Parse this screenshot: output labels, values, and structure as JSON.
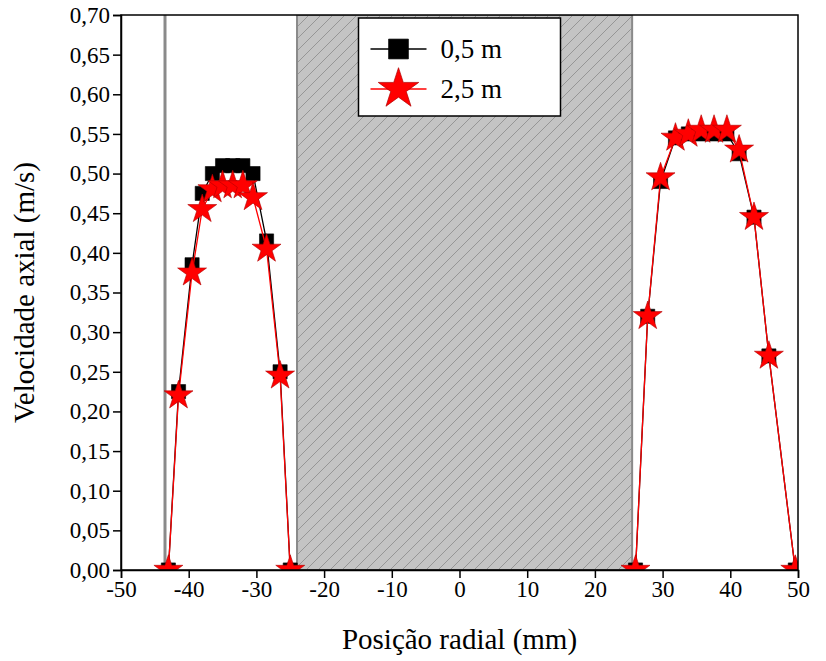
{
  "chart_data": {
    "type": "line",
    "x_label": "Posição radial (mm)",
    "y_label": "Velocidade axial (m/s)",
    "x": [
      -43,
      -41.5,
      -39.5,
      -38,
      -36.5,
      -35,
      -33.5,
      -32,
      -30.5,
      -28.5,
      -26.5,
      -25,
      0,
      26,
      27.8,
      29.7,
      31.9,
      33.8,
      35.7,
      37.6,
      39.5,
      41.3,
      43.5,
      45.7,
      49.6
    ],
    "series": [
      {
        "name": "0,5 m",
        "color": "#000000",
        "marker": "square",
        "line_style": "solid",
        "values": [
          0,
          0.225,
          0.385,
          0.475,
          0.5,
          0.51,
          0.51,
          0.51,
          0.5,
          0.415,
          0.25,
          0,
          null,
          0,
          0.32,
          0.49,
          0.545,
          0.55,
          0.55,
          0.55,
          0.55,
          0.525,
          0.445,
          0.27,
          0
        ]
      },
      {
        "name": "2,5 m",
        "color": "#ff0000",
        "marker": "star",
        "line_style": "solid",
        "values": [
          0,
          0.22,
          0.375,
          0.455,
          0.48,
          0.485,
          0.485,
          0.485,
          0.47,
          0.405,
          0.245,
          0,
          null,
          0,
          0.32,
          0.495,
          0.545,
          0.55,
          0.555,
          0.555,
          0.555,
          0.53,
          0.445,
          0.27,
          0
        ]
      }
    ],
    "regions": [
      [
        -24,
        25.5
      ]
    ],
    "vlines": [
      -43.5
    ],
    "xlim": [
      -50,
      50
    ],
    "xticks": [
      -50,
      -40,
      -30,
      -20,
      -10,
      0,
      10,
      20,
      30,
      40,
      50
    ],
    "ylim": [
      0,
      0.7
    ],
    "yticks": [
      {
        "value": 0,
        "label": "0,00"
      },
      {
        "value": 0.05,
        "label": "0,05"
      },
      {
        "value": 0.1,
        "label": "0,10"
      },
      {
        "value": 0.15,
        "label": "0,15"
      },
      {
        "value": 0.2,
        "label": "0,20"
      },
      {
        "value": 0.25,
        "label": "0,25"
      },
      {
        "value": 0.3,
        "label": "0,30"
      },
      {
        "value": 0.35,
        "label": "0,35"
      },
      {
        "value": 0.4,
        "label": "0,40"
      },
      {
        "value": 0.45,
        "label": "0,45"
      },
      {
        "value": 0.5,
        "label": "0,50"
      },
      {
        "value": 0.55,
        "label": "0,55"
      },
      {
        "value": 0.6,
        "label": "0,60"
      },
      {
        "value": 0.65,
        "label": "0,65"
      },
      {
        "value": 0.7,
        "label": "0,70"
      }
    ],
    "legend": "upper center",
    "grid": false
  }
}
